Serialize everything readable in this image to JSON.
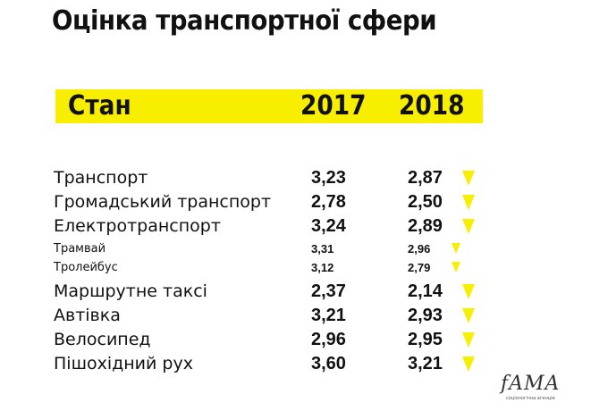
{
  "title": "Оцінка транспортної сфери",
  "header": {
    "label": "Стан",
    "year1": "2017",
    "year2": "2018"
  },
  "rows": [
    {
      "label": "Транспорт",
      "v2017": "3,23",
      "v2018": "2,87",
      "level": "main",
      "trend": "down"
    },
    {
      "label": "Громадський транспорт",
      "v2017": "2,78",
      "v2018": "2,50",
      "level": "main",
      "trend": "down"
    },
    {
      "label": "Електротранспорт",
      "v2017": "3,24",
      "v2018": "2,89",
      "level": "main",
      "trend": "down"
    },
    {
      "label": "Трамвай",
      "v2017": "3,31",
      "v2018": "2,96",
      "level": "sub",
      "trend": "down"
    },
    {
      "label": "Тролейбус",
      "v2017": "3,12",
      "v2018": "2,79",
      "level": "sub",
      "trend": "down"
    },
    {
      "label": "Маршрутне таксі",
      "v2017": "2,37",
      "v2018": "2,14",
      "level": "main",
      "trend": "down"
    },
    {
      "label": "Автівка",
      "v2017": "3,21",
      "v2018": "2,93",
      "level": "main",
      "trend": "down"
    },
    {
      "label": "Велосипед",
      "v2017": "2,96",
      "v2018": "2,95",
      "level": "main",
      "trend": "down"
    },
    {
      "label": "Пішохідний рух",
      "v2017": "3,60",
      "v2018": "3,21",
      "level": "main",
      "trend": "down"
    }
  ],
  "chart_data": {
    "type": "table",
    "title": "Оцінка транспортної сфери",
    "columns": [
      "Стан",
      "2017",
      "2018"
    ],
    "categories": [
      "Транспорт",
      "Громадський транспорт",
      "Електротранспорт",
      "Трамвай",
      "Тролейбус",
      "Маршрутне таксі",
      "Автівка",
      "Велосипед",
      "Пішохідний рух"
    ],
    "series": [
      {
        "name": "2017",
        "values": [
          3.23,
          2.78,
          3.24,
          3.31,
          3.12,
          2.37,
          3.21,
          2.96,
          3.6
        ]
      },
      {
        "name": "2018",
        "values": [
          2.87,
          2.5,
          2.89,
          2.96,
          2.79,
          2.14,
          2.93,
          2.95,
          3.21
        ]
      }
    ]
  },
  "colors": {
    "accent": "#f7ee00",
    "text": "#111111",
    "background": "#ffffff"
  },
  "logo": {
    "word": "fAMA",
    "tagline": "соціологічна агенція"
  }
}
